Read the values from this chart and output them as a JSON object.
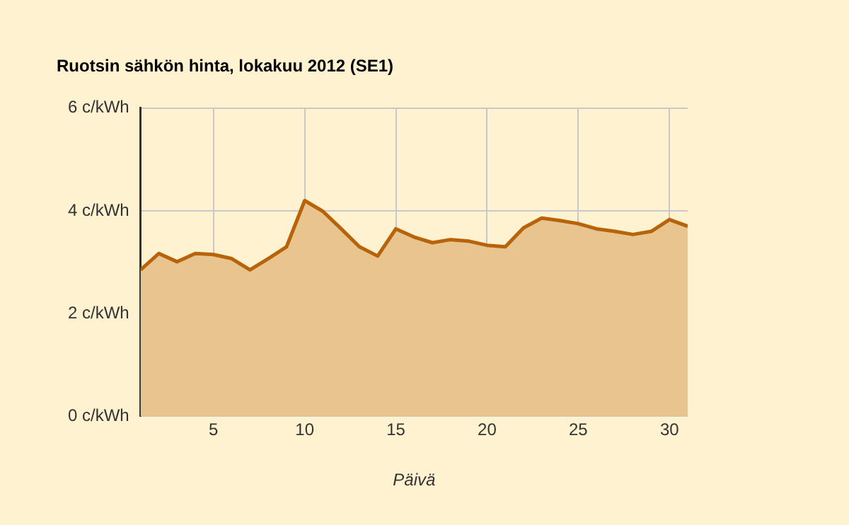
{
  "chart_data": {
    "type": "area",
    "title": "Ruotsin sähkön hinta, lokakuu 2012 (SE1)",
    "xlabel": "Päivä",
    "x": [
      1,
      2,
      3,
      4,
      5,
      6,
      7,
      8,
      9,
      10,
      11,
      12,
      13,
      14,
      15,
      16,
      17,
      18,
      19,
      20,
      21,
      22,
      23,
      24,
      25,
      26,
      27,
      28,
      29,
      30,
      31
    ],
    "series": [
      {
        "color": "#b8620a",
        "values": [
          2.85,
          3.17,
          3.01,
          3.17,
          3.15,
          3.07,
          2.85,
          3.07,
          3.3,
          4.2,
          3.99,
          3.65,
          3.3,
          3.12,
          3.65,
          3.49,
          3.38,
          3.44,
          3.41,
          3.33,
          3.3,
          3.67,
          3.86,
          3.81,
          3.75,
          3.65,
          3.6,
          3.54,
          3.6,
          3.83,
          3.7
        ]
      }
    ],
    "xlim": [
      1,
      31
    ],
    "xticks": [
      5,
      10,
      15,
      20,
      25,
      30
    ],
    "ylim": [
      0,
      6
    ],
    "yticks": [
      {
        "value": 0,
        "label": "0 c/kWh"
      },
      {
        "value": 2,
        "label": "2 c/kWh"
      },
      {
        "value": 4,
        "label": "4 c/kWh"
      },
      {
        "value": 6,
        "label": "6 c/kWh"
      }
    ],
    "grid": true,
    "legend": false
  }
}
